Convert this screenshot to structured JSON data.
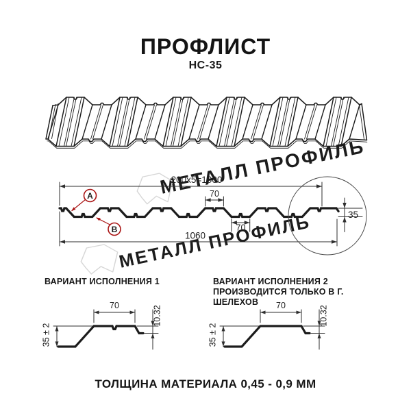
{
  "title": "ПРОФЛИСТ",
  "subtitle": "НС-35",
  "profile_section": {
    "dim_total_width": "200x5=1000",
    "dim_rib_top": "70",
    "dim_rib_bottom": "70",
    "dim_overall": "1060",
    "dim_height": "35",
    "marker_a": "А",
    "marker_b": "В"
  },
  "variant1": {
    "title": "ВАРИАНТ ИСПОЛНЕНИЯ 1",
    "dim_top": "70",
    "dim_step": "10.32",
    "dim_height": "35 ± 2"
  },
  "variant2": {
    "title_line1": "ВАРИАНТ ИСПОЛНЕНИЯ 2",
    "title_line2": "ПРОИЗВОДИТСЯ ТОЛЬКО В Г. ШЕЛЕХОВ",
    "dim_top": "70",
    "dim_step": "10.32",
    "dim_height": "35 ± 2"
  },
  "footer": {
    "thickness_note": "ТОЛЩИНА МАТЕРИАЛА 0,45 - 0,9 ММ"
  },
  "watermark": {
    "text1": "МЕТАЛЛ ПРОФИЛЬ",
    "text2": "МЕТАЛЛ ПРОФИЛЬ"
  },
  "colors": {
    "ink": "#1c1c1c",
    "thin": "#2e2e2e",
    "marker_red": "#aa1414",
    "watermark_gray": "#d7d7d7",
    "detail_circle": "#4a4a4a"
  }
}
